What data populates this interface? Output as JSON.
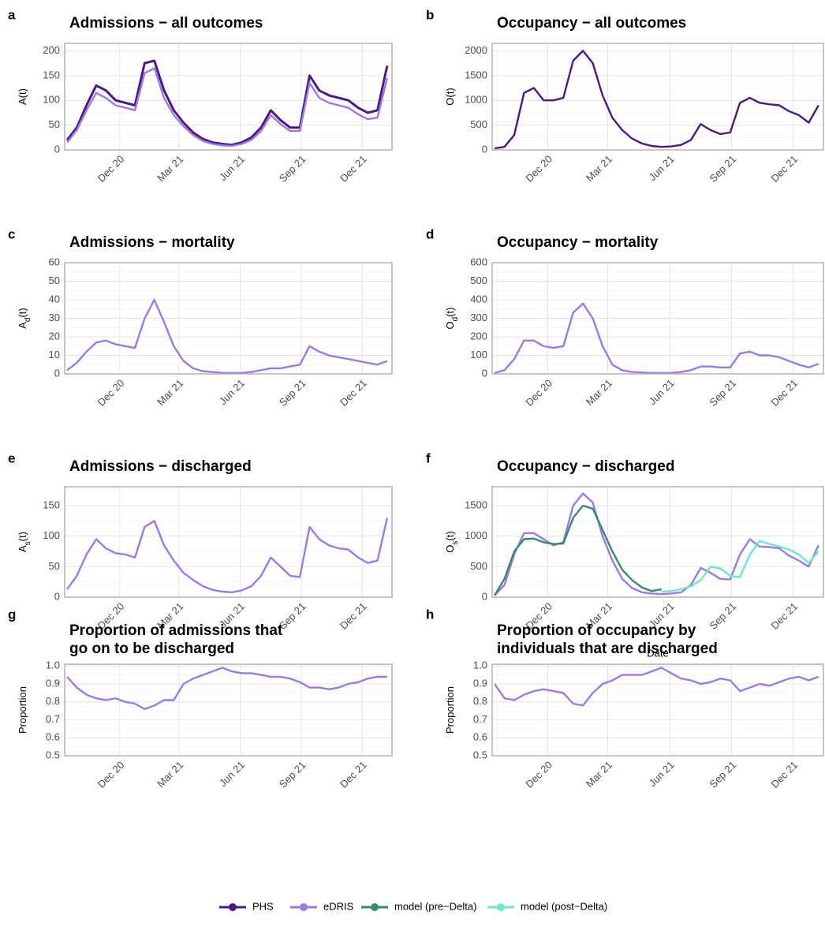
{
  "chart_data": [
    {
      "type": "line",
      "panel": "a",
      "title": [
        "Admissions − all outcomes"
      ],
      "ylabel": [
        "A(t)"
      ],
      "x": [
        2020.7,
        2020.74,
        2020.78,
        2020.82,
        2020.86,
        2020.9,
        2020.94,
        2020.98,
        2021.02,
        2021.06,
        2021.1,
        2021.14,
        2021.18,
        2021.22,
        2021.26,
        2021.3,
        2021.34,
        2021.38,
        2021.42,
        2021.46,
        2021.5,
        2021.54,
        2021.58,
        2021.62,
        2021.66,
        2021.7,
        2021.74,
        2021.78,
        2021.82,
        2021.86,
        2021.9,
        2021.94,
        2021.98,
        2022.02
      ],
      "xlim": [
        2020.69,
        2022.04
      ],
      "xticks": [
        {
          "value": 2020.917,
          "label": "Dec 20"
        },
        {
          "value": 2021.161,
          "label": "Mar 21"
        },
        {
          "value": 2021.414,
          "label": "Jun 21"
        },
        {
          "value": 2021.666,
          "label": "Sep 21"
        },
        {
          "value": 2021.917,
          "label": "Dec 21"
        }
      ],
      "ylim": [
        0,
        215
      ],
      "yticks": [
        0,
        50,
        100,
        150,
        200
      ],
      "grid": true,
      "series": [
        {
          "name": "PHS",
          "color": "#4b1a7e",
          "values": [
            20,
            45,
            90,
            130,
            120,
            100,
            95,
            90,
            175,
            180,
            120,
            80,
            55,
            35,
            22,
            15,
            12,
            10,
            15,
            25,
            45,
            80,
            60,
            45,
            45,
            150,
            120,
            110,
            105,
            100,
            85,
            75,
            80,
            170
          ]
        },
        {
          "name": "eDRIS",
          "color": "#9b7ae6",
          "values": [
            15,
            40,
            80,
            115,
            105,
            90,
            85,
            80,
            155,
            165,
            105,
            70,
            48,
            30,
            18,
            12,
            9,
            8,
            12,
            20,
            38,
            70,
            52,
            38,
            38,
            135,
            105,
            95,
            90,
            85,
            72,
            62,
            65,
            145
          ]
        }
      ]
    },
    {
      "type": "line",
      "panel": "b",
      "title": [
        "Occupancy − all outcomes"
      ],
      "ylabel": [
        "O(t)"
      ],
      "x": [
        2020.7,
        2020.74,
        2020.78,
        2020.82,
        2020.86,
        2020.9,
        2020.94,
        2020.98,
        2021.02,
        2021.06,
        2021.1,
        2021.14,
        2021.18,
        2021.22,
        2021.26,
        2021.3,
        2021.34,
        2021.38,
        2021.42,
        2021.46,
        2021.5,
        2021.54,
        2021.58,
        2021.62,
        2021.66,
        2021.7,
        2021.74,
        2021.78,
        2021.82,
        2021.86,
        2021.9,
        2021.94,
        2021.98,
        2022.02
      ],
      "xlim": [
        2020.69,
        2022.04
      ],
      "xticks": [
        {
          "value": 2020.917,
          "label": "Dec 20"
        },
        {
          "value": 2021.161,
          "label": "Mar 21"
        },
        {
          "value": 2021.414,
          "label": "Jun 21"
        },
        {
          "value": 2021.666,
          "label": "Sep 21"
        },
        {
          "value": 2021.917,
          "label": "Dec 21"
        }
      ],
      "ylim": [
        0,
        2150
      ],
      "yticks": [
        0,
        500,
        1000,
        1500,
        2000
      ],
      "grid": true,
      "series": [
        {
          "color": "#4b1a7e",
          "values": [
            30,
            60,
            300,
            1150,
            1250,
            1000,
            1000,
            1050,
            1800,
            2000,
            1750,
            1100,
            650,
            400,
            230,
            130,
            80,
            60,
            70,
            100,
            200,
            520,
            400,
            320,
            350,
            950,
            1050,
            950,
            920,
            900,
            780,
            700,
            550,
            900
          ]
        }
      ]
    },
    {
      "type": "line",
      "panel": "c",
      "title": [
        "Admissions − mortality"
      ],
      "ylabel": [
        "A",
        "d",
        "(t)"
      ],
      "x": [
        2020.7,
        2020.74,
        2020.78,
        2020.82,
        2020.86,
        2020.9,
        2020.94,
        2020.98,
        2021.02,
        2021.06,
        2021.1,
        2021.14,
        2021.18,
        2021.22,
        2021.26,
        2021.3,
        2021.34,
        2021.38,
        2021.42,
        2021.46,
        2021.5,
        2021.54,
        2021.58,
        2021.62,
        2021.66,
        2021.7,
        2021.74,
        2021.78,
        2021.82,
        2021.86,
        2021.9,
        2021.94,
        2021.98,
        2022.02
      ],
      "xlim": [
        2020.69,
        2022.04
      ],
      "xticks": [
        {
          "value": 2020.917,
          "label": "Dec 20"
        },
        {
          "value": 2021.161,
          "label": "Mar 21"
        },
        {
          "value": 2021.414,
          "label": "Jun 21"
        },
        {
          "value": 2021.666,
          "label": "Sep 21"
        },
        {
          "value": 2021.917,
          "label": "Dec 21"
        }
      ],
      "ylim": [
        0,
        60
      ],
      "yticks": [
        0,
        10,
        20,
        30,
        40,
        50,
        60
      ],
      "grid": true,
      "series": [
        {
          "color": "#9b7ae6",
          "values": [
            2,
            6,
            12,
            17,
            18,
            16,
            15,
            14,
            30,
            40,
            28,
            15,
            7,
            3,
            1.5,
            1,
            0.5,
            0.5,
            0.5,
            1,
            2,
            3,
            3,
            4,
            5,
            15,
            12,
            10,
            9,
            8,
            7,
            6,
            5,
            7
          ]
        }
      ]
    },
    {
      "type": "line",
      "panel": "d",
      "title": [
        "Occupancy − mortality"
      ],
      "ylabel": [
        "O",
        "d",
        "(t)"
      ],
      "x": [
        2020.7,
        2020.74,
        2020.78,
        2020.82,
        2020.86,
        2020.9,
        2020.94,
        2020.98,
        2021.02,
        2021.06,
        2021.1,
        2021.14,
        2021.18,
        2021.22,
        2021.26,
        2021.3,
        2021.34,
        2021.38,
        2021.42,
        2021.46,
        2021.5,
        2021.54,
        2021.58,
        2021.62,
        2021.66,
        2021.7,
        2021.74,
        2021.78,
        2021.82,
        2021.86,
        2021.9,
        2021.94,
        2021.98,
        2022.02
      ],
      "xlim": [
        2020.69,
        2022.04
      ],
      "xticks": [
        {
          "value": 2020.917,
          "label": "Dec 20"
        },
        {
          "value": 2021.161,
          "label": "Mar 21"
        },
        {
          "value": 2021.414,
          "label": "Jun 21"
        },
        {
          "value": 2021.666,
          "label": "Sep 21"
        },
        {
          "value": 2021.917,
          "label": "Dec 21"
        }
      ],
      "ylim": [
        0,
        600
      ],
      "yticks": [
        0,
        100,
        200,
        300,
        400,
        500,
        600
      ],
      "grid": true,
      "series": [
        {
          "color": "#9b7ae6",
          "values": [
            5,
            20,
            80,
            180,
            180,
            150,
            140,
            150,
            330,
            380,
            300,
            150,
            50,
            20,
            10,
            8,
            5,
            5,
            5,
            10,
            20,
            40,
            40,
            35,
            35,
            110,
            120,
            100,
            100,
            90,
            70,
            50,
            35,
            55
          ]
        }
      ]
    },
    {
      "type": "line",
      "panel": "e",
      "title": [
        "Admissions − discharged"
      ],
      "ylabel": [
        "A",
        "s",
        "(t)"
      ],
      "x": [
        2020.7,
        2020.74,
        2020.78,
        2020.82,
        2020.86,
        2020.9,
        2020.94,
        2020.98,
        2021.02,
        2021.06,
        2021.1,
        2021.14,
        2021.18,
        2021.22,
        2021.26,
        2021.3,
        2021.34,
        2021.38,
        2021.42,
        2021.46,
        2021.5,
        2021.54,
        2021.58,
        2021.62,
        2021.66,
        2021.7,
        2021.74,
        2021.78,
        2021.82,
        2021.86,
        2021.9,
        2021.94,
        2021.98,
        2022.02
      ],
      "xlim": [
        2020.69,
        2022.04
      ],
      "xticks": [
        {
          "value": 2020.917,
          "label": "Dec 20"
        },
        {
          "value": 2021.161,
          "label": "Mar 21"
        },
        {
          "value": 2021.414,
          "label": "Jun 21"
        },
        {
          "value": 2021.666,
          "label": "Sep 21"
        },
        {
          "value": 2021.917,
          "label": "Dec 21"
        }
      ],
      "ylim": [
        0,
        181
      ],
      "yticks": [
        0,
        50,
        100,
        150
      ],
      "grid": true,
      "series": [
        {
          "color": "#9b7ae6",
          "values": [
            13,
            35,
            70,
            95,
            80,
            72,
            70,
            65,
            115,
            125,
            85,
            60,
            40,
            28,
            18,
            12,
            9,
            8,
            11,
            18,
            35,
            65,
            50,
            35,
            33,
            115,
            95,
            85,
            80,
            78,
            65,
            56,
            60,
            130
          ]
        }
      ]
    },
    {
      "type": "line",
      "panel": "f",
      "title": [
        "Occupancy − discharged"
      ],
      "ylabel": [
        "O",
        "s",
        "(t)"
      ],
      "xlabel": "Date",
      "x": [
        2020.7,
        2020.74,
        2020.78,
        2020.82,
        2020.86,
        2020.9,
        2020.94,
        2020.98,
        2021.02,
        2021.06,
        2021.1,
        2021.14,
        2021.18,
        2021.22,
        2021.26,
        2021.3,
        2021.34,
        2021.38,
        2021.42,
        2021.46,
        2021.5,
        2021.54,
        2021.58,
        2021.62,
        2021.66,
        2021.7,
        2021.74,
        2021.78,
        2021.82,
        2021.86,
        2021.9,
        2021.94,
        2021.98,
        2022.02
      ],
      "xlim": [
        2020.69,
        2022.04
      ],
      "xticks": [
        {
          "value": 2020.917,
          "label": "Dec 20"
        },
        {
          "value": 2021.161,
          "label": "Mar 21"
        },
        {
          "value": 2021.414,
          "label": "Jun 21"
        },
        {
          "value": 2021.666,
          "label": "Sep 21"
        },
        {
          "value": 2021.917,
          "label": "Dec 21"
        }
      ],
      "ylim": [
        0,
        1810
      ],
      "yticks": [
        0,
        500,
        1000,
        1500
      ],
      "grid": true,
      "series": [
        {
          "color": "#9b7ae6",
          "values": [
            30,
            200,
            700,
            1050,
            1050,
            950,
            850,
            900,
            1500,
            1700,
            1550,
            1000,
            600,
            300,
            150,
            80,
            60,
            50,
            60,
            80,
            200,
            480,
            400,
            300,
            290,
            700,
            950,
            830,
            820,
            800,
            680,
            600,
            500,
            850
          ]
        },
        {
          "name": "model (pre−Delta)",
          "color": "#3a8a6a",
          "values": [
            30,
            300,
            750,
            950,
            960,
            900,
            870,
            880,
            1300,
            1500,
            1450,
            1100,
            750,
            450,
            280,
            160,
            100,
            130,
            null,
            null,
            null,
            null,
            null,
            null,
            null,
            null,
            null,
            null,
            null,
            null,
            null,
            null,
            null,
            null
          ]
        },
        {
          "name": "model (post−Delta)",
          "color": "#6ee8c8",
          "values": [
            null,
            null,
            null,
            null,
            null,
            null,
            null,
            null,
            null,
            null,
            null,
            null,
            null,
            null,
            null,
            null,
            null,
            90,
            100,
            130,
            180,
            280,
            500,
            470,
            350,
            330,
            700,
            920,
            870,
            830,
            780,
            700,
            560,
            750
          ]
        }
      ]
    },
    {
      "type": "line",
      "panel": "g",
      "title": [
        "Proportion of admissions that",
        "go on to be discharged"
      ],
      "ylabel": [
        "Proportion"
      ],
      "x": [
        2020.7,
        2020.74,
        2020.78,
        2020.82,
        2020.86,
        2020.9,
        2020.94,
        2020.98,
        2021.02,
        2021.06,
        2021.1,
        2021.14,
        2021.18,
        2021.22,
        2021.26,
        2021.3,
        2021.34,
        2021.38,
        2021.42,
        2021.46,
        2021.5,
        2021.54,
        2021.58,
        2021.62,
        2021.66,
        2021.7,
        2021.74,
        2021.78,
        2021.82,
        2021.86,
        2021.9,
        2021.94,
        2021.98,
        2022.02
      ],
      "xlim": [
        2020.69,
        2022.04
      ],
      "xticks": [
        {
          "value": 2020.917,
          "label": "Dec 20"
        },
        {
          "value": 2021.161,
          "label": "Mar 21"
        },
        {
          "value": 2021.414,
          "label": "Jun 21"
        },
        {
          "value": 2021.666,
          "label": "Sep 21"
        },
        {
          "value": 2021.917,
          "label": "Dec 21"
        }
      ],
      "ylim": [
        0.5,
        1.01
      ],
      "yticks": [
        0.5,
        0.6,
        0.7,
        0.8,
        0.9,
        {
          "value": 1,
          "label": "1.0"
        }
      ],
      "grid": true,
      "series": [
        {
          "color": "#9b7ae6",
          "values": [
            0.94,
            0.88,
            0.84,
            0.82,
            0.81,
            0.82,
            0.8,
            0.79,
            0.76,
            0.78,
            0.81,
            0.81,
            0.9,
            0.93,
            0.95,
            0.97,
            0.99,
            0.97,
            0.96,
            0.96,
            0.95,
            0.94,
            0.94,
            0.93,
            0.91,
            0.88,
            0.88,
            0.87,
            0.88,
            0.9,
            0.91,
            0.93,
            0.94,
            0.94
          ]
        }
      ]
    },
    {
      "type": "line",
      "panel": "h",
      "title": [
        "Proportion of occupancy by",
        "individuals that are discharged"
      ],
      "ylabel": [
        "Proportion"
      ],
      "x": [
        2020.7,
        2020.74,
        2020.78,
        2020.82,
        2020.86,
        2020.9,
        2020.94,
        2020.98,
        2021.02,
        2021.06,
        2021.1,
        2021.14,
        2021.18,
        2021.22,
        2021.26,
        2021.3,
        2021.34,
        2021.38,
        2021.42,
        2021.46,
        2021.5,
        2021.54,
        2021.58,
        2021.62,
        2021.66,
        2021.7,
        2021.74,
        2021.78,
        2021.82,
        2021.86,
        2021.9,
        2021.94,
        2021.98,
        2022.02
      ],
      "xlim": [
        2020.69,
        2022.04
      ],
      "xticks": [
        {
          "value": 2020.917,
          "label": "Dec 20"
        },
        {
          "value": 2021.161,
          "label": "Mar 21"
        },
        {
          "value": 2021.414,
          "label": "Jun 21"
        },
        {
          "value": 2021.666,
          "label": "Sep 21"
        },
        {
          "value": 2021.917,
          "label": "Dec 21"
        }
      ],
      "ylim": [
        0.5,
        1.01
      ],
      "yticks": [
        0.5,
        0.6,
        0.7,
        0.8,
        0.9,
        {
          "value": 1,
          "label": "1.0"
        }
      ],
      "grid": true,
      "series": [
        {
          "color": "#9b7ae6",
          "values": [
            0.9,
            0.82,
            0.81,
            0.84,
            0.86,
            0.87,
            0.86,
            0.85,
            0.79,
            0.78,
            0.85,
            0.9,
            0.92,
            0.95,
            0.95,
            0.95,
            0.97,
            0.99,
            0.96,
            0.93,
            0.92,
            0.9,
            0.91,
            0.93,
            0.92,
            0.86,
            0.88,
            0.9,
            0.89,
            0.91,
            0.93,
            0.94,
            0.92,
            0.94
          ]
        }
      ]
    }
  ]
}
